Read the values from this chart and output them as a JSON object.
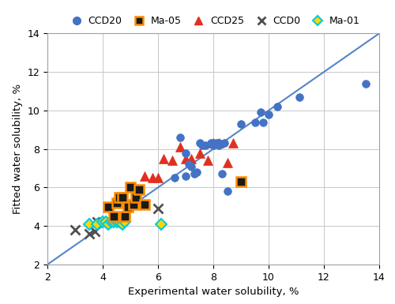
{
  "CCD20": {
    "x": [
      6.8,
      7.0,
      7.1,
      7.2,
      7.3,
      7.5,
      7.6,
      7.7,
      7.9,
      8.0,
      8.1,
      8.2,
      8.3,
      8.5,
      9.5,
      9.7,
      10.0,
      10.3,
      11.1,
      13.5,
      6.6,
      7.0,
      7.4,
      8.0,
      8.2,
      8.4,
      9.0,
      9.8
    ],
    "y": [
      8.6,
      7.8,
      7.2,
      7.1,
      6.7,
      8.3,
      8.2,
      8.2,
      8.3,
      8.2,
      8.3,
      8.3,
      6.7,
      5.8,
      9.4,
      9.9,
      9.8,
      10.2,
      10.7,
      11.4,
      6.5,
      6.6,
      6.8,
      8.3,
      8.2,
      8.3,
      9.3,
      9.4
    ],
    "color": "#4472C4",
    "marker": "o",
    "markersize": 7,
    "label": "CCD20",
    "zorder": 5
  },
  "Ma05": {
    "x": [
      4.2,
      4.4,
      4.5,
      4.6,
      4.7,
      4.8,
      4.9,
      5.0,
      5.1,
      5.2,
      5.3,
      5.5,
      9.0
    ],
    "y": [
      5.0,
      4.5,
      5.2,
      5.5,
      5.5,
      4.5,
      5.0,
      6.0,
      5.1,
      5.5,
      5.9,
      5.1,
      6.3
    ],
    "facecolor": "#1a1a1a",
    "edgecolor": "#FF8C00",
    "marker": "s",
    "markersize": 8,
    "label": "Ma-05",
    "zorder": 4
  },
  "CCD25": {
    "x": [
      5.5,
      5.8,
      6.0,
      6.2,
      6.5,
      6.8,
      7.0,
      7.2,
      7.5,
      7.8,
      8.0,
      8.2,
      8.5,
      8.7
    ],
    "y": [
      6.6,
      6.5,
      6.5,
      7.5,
      7.4,
      8.1,
      7.5,
      7.5,
      7.8,
      7.4,
      8.3,
      8.3,
      7.3,
      8.3
    ],
    "color": "#E03020",
    "marker": "^",
    "markersize": 8,
    "label": "CCD25",
    "zorder": 4
  },
  "CCD0": {
    "x": [
      3.0,
      3.5,
      3.7,
      3.8,
      4.0,
      6.0
    ],
    "y": [
      3.8,
      3.6,
      3.7,
      4.2,
      4.2,
      4.9
    ],
    "color": "#505050",
    "marker": "x",
    "markersize": 8,
    "label": "CCD0",
    "zorder": 4
  },
  "Ma01": {
    "x": [
      3.5,
      3.8,
      4.0,
      4.1,
      4.2,
      4.3,
      4.4,
      4.5,
      4.6,
      4.7,
      4.8,
      6.1
    ],
    "y": [
      4.1,
      4.1,
      4.2,
      4.2,
      4.1,
      4.2,
      4.2,
      4.2,
      4.2,
      4.1,
      4.2,
      4.1
    ],
    "facecolor": "#FFD700",
    "edgecolor": "#00CCDD",
    "marker": "D",
    "markersize": 7,
    "label": "Ma-01",
    "zorder": 4
  },
  "line_color": "#5585C8",
  "xlabel": "Experimental water solubility, %",
  "ylabel": "Fitted water solubility, %",
  "xlim": [
    2,
    14
  ],
  "ylim": [
    2,
    14
  ],
  "xticks": [
    2,
    4,
    6,
    8,
    10,
    12,
    14
  ],
  "yticks": [
    2,
    4,
    6,
    8,
    10,
    12,
    14
  ],
  "grid_color": "#C8C8C8",
  "bg_color": "#FFFFFF",
  "legend_fontsize": 9,
  "axis_fontsize": 9.5
}
